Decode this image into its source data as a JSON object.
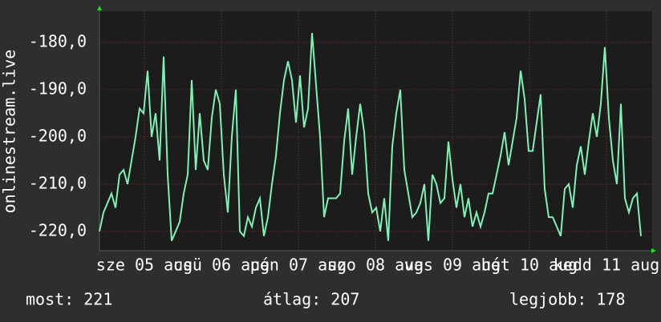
{
  "chart_data": {
    "type": "line",
    "y_label": "onlinestream.live",
    "color": "#80f0b4",
    "grid": true,
    "xlim": [
      0,
      172.25
    ],
    "xticks": [
      {
        "value": 14,
        "label": "sze 05 aug"
      },
      {
        "value": 38,
        "label": "csü 06 aug"
      },
      {
        "value": 62,
        "label": "pén 07 aug"
      },
      {
        "value": 86,
        "label": "szo 08 aug"
      },
      {
        "value": 110,
        "label": "vas 09 aug"
      },
      {
        "value": 134,
        "label": "hét 10 aug"
      },
      {
        "value": 158,
        "label": "kedd 11 aug"
      }
    ],
    "ylim": [
      -224.1,
      -173.4
    ],
    "yticks": [
      {
        "value": -220,
        "label": "-220,0"
      },
      {
        "value": -210,
        "label": "-210,0"
      },
      {
        "value": -200,
        "label": "-200,0"
      },
      {
        "value": -190,
        "label": "-190,0"
      },
      {
        "value": -180,
        "label": "-180,0"
      }
    ],
    "x": [
      0,
      1.25,
      2.5,
      3.75,
      5,
      6.25,
      7.5,
      8.75,
      10,
      11.25,
      12.5,
      13.75,
      15,
      16.25,
      17.5,
      18.75,
      20,
      21.25,
      22.5,
      23.75,
      25,
      26.25,
      27.5,
      28.75,
      30,
      31.25,
      32.5,
      33.75,
      35,
      36.25,
      37.5,
      38.75,
      40,
      41.25,
      42.5,
      43.75,
      45,
      46.25,
      47.5,
      48.75,
      50,
      51.25,
      52.5,
      53.75,
      55,
      56.25,
      57.5,
      58.75,
      60,
      61.25,
      62.5,
      63.75,
      65,
      66.25,
      67.5,
      68.75,
      70,
      71.25,
      72.5,
      73.75,
      75,
      76.25,
      77.5,
      78.75,
      80,
      81.25,
      82.5,
      83.75,
      85,
      86.25,
      87.5,
      88.75,
      90,
      91.25,
      92.5,
      93.75,
      95,
      96.25,
      97.5,
      98.75,
      100,
      101.25,
      102.5,
      103.75,
      105,
      106.25,
      107.5,
      108.75,
      110,
      111.25,
      112.5,
      113.75,
      115,
      116.25,
      117.5,
      118.75,
      120,
      121.25,
      122.5,
      123.75,
      125,
      126.25,
      127.5,
      128.75,
      130,
      131.25,
      132.5,
      133.75,
      135,
      136.25,
      137.5,
      138.75,
      140,
      141.25,
      142.5,
      143.75,
      145,
      146.25,
      147.5,
      148.75,
      150,
      151.25,
      152.5,
      153.75,
      155,
      156.25,
      157.5,
      158.75,
      160,
      161.25,
      162.5,
      163.75,
      165,
      166.25,
      167.5,
      168.75
    ],
    "values": [
      -220,
      -216,
      -214,
      -212,
      -215,
      -208,
      -207,
      -210,
      -205,
      -200,
      -194,
      -195,
      -186,
      -200,
      -195,
      -205,
      -183,
      -208,
      -222,
      -220,
      -218,
      -212,
      -208,
      -188,
      -207,
      -195,
      -205,
      -207,
      -196,
      -190,
      -193,
      -208,
      -216,
      -200,
      -190,
      -220,
      -221,
      -217,
      -219,
      -215,
      -213,
      -221,
      -217,
      -210,
      -204,
      -195,
      -188,
      -184,
      -188,
      -197,
      -187,
      -198,
      -194,
      -178,
      -189,
      -200,
      -217,
      -213,
      -213,
      -213,
      -212,
      -201,
      -194,
      -208,
      -200,
      -193,
      -199,
      -212,
      -216,
      -215,
      -220,
      -213,
      -222,
      -202,
      -195,
      -190,
      -207,
      -212,
      -217,
      -216,
      -214,
      -210,
      -222,
      -208,
      -210,
      -214,
      -213,
      -201,
      -209,
      -215,
      -210,
      -217,
      -213,
      -219,
      -216,
      -219,
      -216,
      -212,
      -212,
      -208,
      -204,
      -199,
      -206,
      -201,
      -196,
      -186,
      -192,
      -203,
      -203,
      -197,
      -191,
      -211,
      -217,
      -217,
      -219,
      -221,
      -211,
      -210,
      -215,
      -206,
      -202,
      -208,
      -201,
      -195,
      -200,
      -193,
      -181,
      -196,
      -205,
      -210,
      -193,
      -213,
      -216,
      -213,
      -212,
      -221
    ],
    "summary": [
      "most: 221",
      "átlag: 207",
      "legjobb: 178"
    ]
  }
}
